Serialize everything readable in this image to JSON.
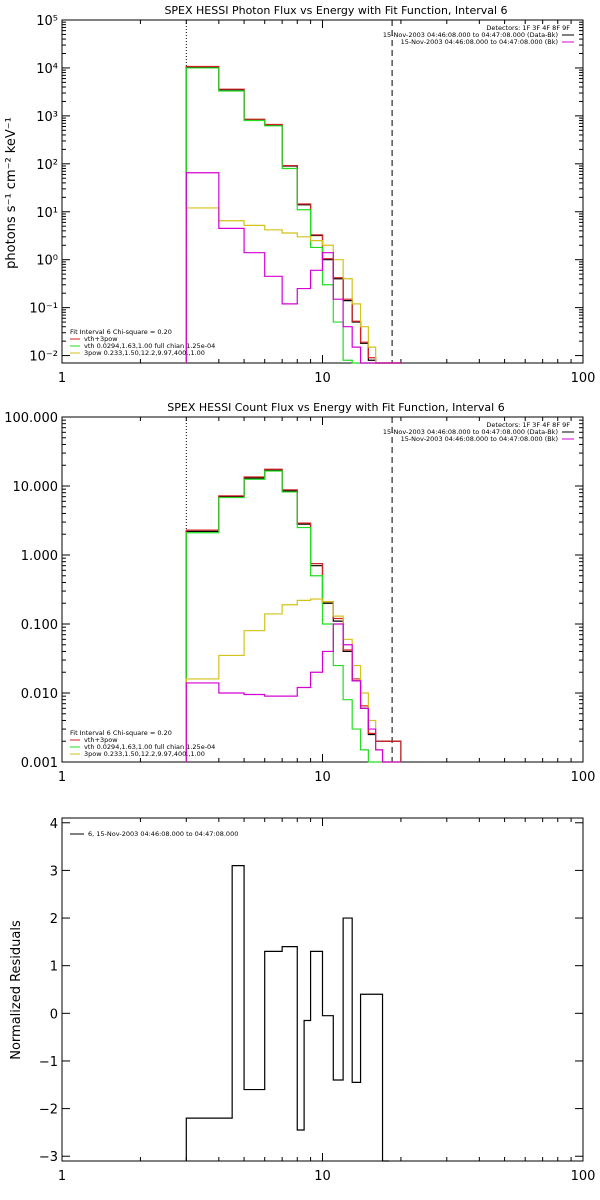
{
  "chart_data": [
    {
      "type": "line",
      "scale": "log-log",
      "title": "SPEX HESSI Photon Flux vs Energy with Fit Function, Interval 6",
      "ylabel": "photons s⁻¹ cm⁻² keV⁻¹",
      "xlim": [
        1,
        100
      ],
      "ylim": [
        0.007,
        100000
      ],
      "xticks": [
        1,
        10,
        100
      ],
      "xtick_labels": [
        "1",
        "10",
        "100"
      ],
      "yticks": [
        0.01,
        0.1,
        1,
        10,
        100,
        1000,
        10000,
        100000
      ],
      "ytick_labels": [
        "10⁻²",
        "10⁻¹",
        "10⁰",
        "10¹",
        "10²",
        "10³",
        "10⁴",
        "10⁵"
      ],
      "vlines": [
        {
          "x": 3,
          "style": "dotted"
        },
        {
          "x": 18.5,
          "style": "dashed"
        }
      ],
      "edges": [
        3,
        4,
        5,
        6,
        7,
        8,
        9,
        10,
        11,
        12,
        13,
        14,
        15,
        16,
        17,
        18,
        20
      ],
      "header_text": "Detectors: 1F 3F 4F 8F 9F",
      "data_legend": [
        {
          "text": "15-Nov-2003 04:46:08.000 to 04:47:08.000 (Data-Bk)",
          "color": "#000000"
        },
        {
          "text": "15-Nov-2003 04:46:08.000 to 04:47:08.000 (Bk)",
          "color": "#d400d4"
        }
      ],
      "fit_legend_title": "Fit Interval  6    Chi-square = 0.20",
      "fit_legend": [
        {
          "text": "vth+3pow",
          "color": "#d42222"
        },
        {
          "text": "vth 0.0294,1.63,1.00  full chian 1.25e-04",
          "color": "#22dd22"
        },
        {
          "text": "3pow 0.233,1.50,12.2,9.97,400.,1.00",
          "color": "#d4c21a"
        }
      ],
      "series": [
        {
          "color": "#000000",
          "values": [
            10500,
            3500,
            830,
            650,
            90,
            14,
            3.2,
            1.0,
            0.4,
            0.14,
            0.05,
            0.018,
            0.008,
            0.005,
            0.004,
            0.004
          ]
        },
        {
          "color": "#d42222",
          "values": [
            10700,
            3600,
            850,
            660,
            92,
            14.5,
            3.3,
            1.05,
            0.42,
            0.15,
            0.052,
            0.019,
            0.009,
            0.005,
            0.004,
            0.004
          ]
        },
        {
          "color": "#22dd22",
          "values": [
            10000,
            3300,
            800,
            620,
            80,
            11,
            1.8,
            0.3,
            0.05,
            0.008,
            0.005,
            0.004,
            0.004,
            0.004,
            0.004,
            0.004
          ]
        },
        {
          "color": "#d4c21a",
          "values": [
            12,
            6.5,
            5.2,
            4.2,
            3.6,
            3.0,
            2.5,
            2.0,
            1.0,
            0.4,
            0.12,
            0.04,
            0.015,
            0.005,
            0.004,
            0.004
          ]
        },
        {
          "color": "#d400d4",
          "values": [
            65,
            4.5,
            1.4,
            0.45,
            0.12,
            0.25,
            0.6,
            1.4,
            0.15,
            0.04,
            0.015,
            0.006,
            0.004,
            0.004,
            0.004,
            0.004
          ]
        }
      ]
    },
    {
      "type": "line",
      "scale": "log-log",
      "title": "SPEX HESSI Count Flux vs Energy with Fit Function, Interval 6",
      "ylabel": "",
      "xlim": [
        1,
        100
      ],
      "ylim": [
        0.001,
        100
      ],
      "xticks": [
        1,
        10,
        100
      ],
      "xtick_labels": [
        "1",
        "10",
        "100"
      ],
      "yticks": [
        0.001,
        0.01,
        0.1,
        1,
        10,
        100
      ],
      "ytick_labels": [
        "0.001",
        "0.010",
        "0.100",
        "1.000",
        "10.000",
        "100.000"
      ],
      "vlines": [
        {
          "x": 3,
          "style": "dotted"
        },
        {
          "x": 18.5,
          "style": "dashed"
        }
      ],
      "edges": [
        3,
        4,
        5,
        6,
        7,
        8,
        9,
        10,
        11,
        12,
        13,
        14,
        15,
        16,
        17,
        18,
        20
      ],
      "header_text": "Detectors: 1F 3F 4F 8F 9F",
      "data_legend": [
        {
          "text": "15-Nov-2003 04:46:08.000 to 04:47:08.000 (Data-Bk)",
          "color": "#000000"
        },
        {
          "text": "15-Nov-2003 04:46:08.000 to 04:47:08.000 (Bk)",
          "color": "#d400d4"
        }
      ],
      "fit_legend_title": "Fit Interval  6    Chi-square = 0.20",
      "fit_legend": [
        {
          "text": "vth+3pow",
          "color": "#d42222"
        },
        {
          "text": "vth 0.0294,1.63,1.00  full chian 1.25e-04",
          "color": "#22dd22"
        },
        {
          "text": "3pow 0.233,1.50,12.2,9.97,400.,1.00",
          "color": "#d4c21a"
        }
      ],
      "series": [
        {
          "color": "#000000",
          "values": [
            2.2,
            7.0,
            13.0,
            17.0,
            8.5,
            2.8,
            0.7,
            0.2,
            0.11,
            0.04,
            0.015,
            0.006,
            0.0025,
            0.002,
            0.002,
            0.002
          ]
        },
        {
          "color": "#d42222",
          "values": [
            2.3,
            7.2,
            13.5,
            17.5,
            8.8,
            2.9,
            0.75,
            0.21,
            0.12,
            0.042,
            0.016,
            0.0065,
            0.0026,
            0.002,
            0.002,
            0.002
          ]
        },
        {
          "color": "#22dd22",
          "values": [
            2.1,
            6.8,
            12.5,
            16.5,
            8.2,
            2.5,
            0.5,
            0.1,
            0.025,
            0.008,
            0.003,
            0.0015,
            0.001,
            0.001,
            0.001,
            0.001
          ]
        },
        {
          "color": "#d4c21a",
          "values": [
            0.016,
            0.035,
            0.08,
            0.14,
            0.19,
            0.22,
            0.23,
            0.21,
            0.13,
            0.06,
            0.025,
            0.01,
            0.004,
            0.0015,
            0.001,
            0.001
          ]
        },
        {
          "color": "#d400d4",
          "values": [
            0.014,
            0.01,
            0.0095,
            0.009,
            0.009,
            0.012,
            0.02,
            0.04,
            0.1,
            0.05,
            0.015,
            0.006,
            0.003,
            0.0015,
            0.001,
            0.001
          ]
        }
      ]
    },
    {
      "type": "line",
      "scale": "log-x",
      "title": "",
      "ylabel": "Normalized Residuals",
      "xlim": [
        1,
        100
      ],
      "ylim": [
        -3.1,
        4.1
      ],
      "xticks": [
        1,
        10,
        100
      ],
      "xtick_labels": [
        "1",
        "10",
        "100"
      ],
      "yticks": [
        -3,
        -2,
        -1,
        0,
        1,
        2,
        3,
        4
      ],
      "ytick_labels": [
        "−3",
        "−2",
        "−1",
        "0",
        "1",
        "2",
        "3",
        "4"
      ],
      "legend": "6, 15-Nov-2003 04:46:08.000 to 04:47:08.000",
      "edges": [
        3,
        4,
        4.5,
        5,
        6,
        6.5,
        7,
        8,
        8.5,
        9,
        10,
        11,
        12,
        13,
        14,
        15,
        16,
        17,
        18
      ],
      "residuals": [
        -2.2,
        -2.2,
        3.1,
        -1.6,
        1.3,
        1.3,
        1.4,
        -2.45,
        -0.15,
        1.3,
        -0.05,
        -1.4,
        2.0,
        -1.45,
        0.4,
        0.4,
        0.4,
        -3.1
      ]
    }
  ]
}
